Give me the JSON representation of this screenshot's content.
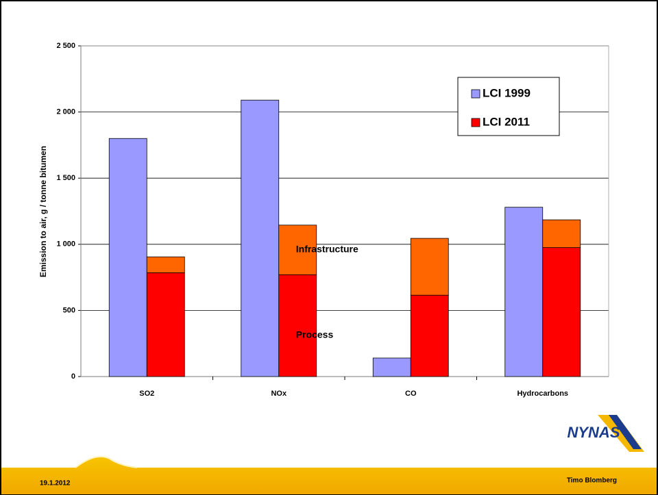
{
  "chart_data": {
    "type": "grouped-stacked-bar",
    "y_label": "Emission to air, g / tonne bitumen",
    "categories": [
      "SO2",
      "NOx",
      "CO",
      "Hydrocarbons"
    ],
    "series": [
      {
        "name": "LCI 1999",
        "color": "#9999ff",
        "values": [
          1800,
          2090,
          140,
          1280
        ]
      },
      {
        "name": "LCI 2011",
        "color": "#ff0000",
        "stack": [
          {
            "name": "Process",
            "color": "#ff0000",
            "values": [
              785,
              770,
              615,
              975
            ]
          },
          {
            "name": "Infrastructure",
            "color": "#ff6600",
            "values": [
              120,
              375,
              430,
              210
            ]
          }
        ]
      }
    ],
    "ylim": [
      0,
      2500
    ],
    "yticks": [
      0,
      {
        "value": 500,
        "label": "500"
      },
      {
        "value": 1000,
        "label": "1 000"
      },
      {
        "value": 1500,
        "label": "1 500"
      },
      {
        "value": 2000,
        "label": "2 000"
      },
      {
        "value": 2500,
        "label": "2 500"
      }
    ],
    "grid": true,
    "legend": "upper right"
  },
  "footer": {
    "date": "19.1.2012",
    "author": "Timo Blomberg",
    "logo": "NYNAS"
  }
}
